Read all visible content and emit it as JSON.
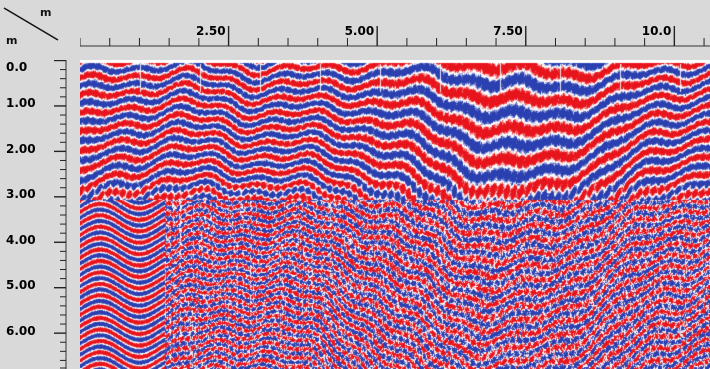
{
  "axes": {
    "corner_top_unit": "m",
    "corner_left_unit": "m",
    "horizontal": {
      "unit": "m",
      "range": [
        0,
        10.6
      ],
      "labels": [
        {
          "value": 2.5,
          "text": "2.50"
        },
        {
          "value": 5.0,
          "text": "5.00"
        },
        {
          "value": 7.5,
          "text": "7.50"
        },
        {
          "value": 10.0,
          "text": "10.0"
        }
      ],
      "minor_step": 0.5
    },
    "vertical": {
      "unit": "m",
      "range": [
        0,
        6.8
      ],
      "labels": [
        {
          "value": 0.0,
          "text": "0.0"
        },
        {
          "value": 1.0,
          "text": "1.00"
        },
        {
          "value": 2.0,
          "text": "2.00"
        },
        {
          "value": 3.0,
          "text": "3.00"
        },
        {
          "value": 4.0,
          "text": "4.00"
        },
        {
          "value": 5.0,
          "text": "5.00"
        },
        {
          "value": 6.0,
          "text": "6.00"
        }
      ],
      "minor_step": 0.2
    }
  },
  "colors": {
    "positive": "#e8141c",
    "negative": "#2a3fb0",
    "neutral": "#ffffff",
    "ruler": "#d9d9d9"
  }
}
